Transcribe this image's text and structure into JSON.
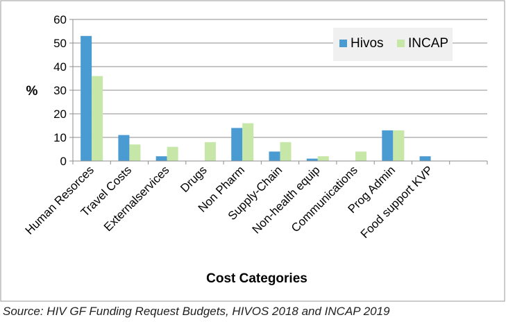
{
  "chart_data": {
    "type": "bar",
    "title": "",
    "xlabel": "Cost Categories",
    "ylabel": "%",
    "ylim": [
      0,
      60
    ],
    "yticks": [
      0,
      10,
      20,
      30,
      40,
      50,
      60
    ],
    "grid": true,
    "legend_position": "top-right",
    "categories": [
      "Human Resorces",
      "Travel Costs",
      "Externalservices",
      "Drugs",
      "Non Pharm",
      "Supply-Chain",
      "Non-health equip",
      "Communications",
      "Prog Admin",
      "Food support KVP",
      ""
    ],
    "series": [
      {
        "name": "Hivos",
        "color": "#4a9bd2",
        "values": [
          53,
          11,
          2,
          0,
          14,
          4,
          1,
          0,
          13,
          2,
          0
        ]
      },
      {
        "name": "INCAP",
        "color": "#c6e7a8",
        "values": [
          36,
          7,
          6,
          8,
          16,
          8,
          2,
          4,
          13,
          0,
          0
        ]
      }
    ]
  },
  "caption": "Source: HIV GF Funding Request Budgets, HIVOS 2018 and INCAP 2019"
}
